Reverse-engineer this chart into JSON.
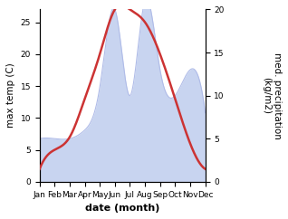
{
  "months": [
    "Jan",
    "Feb",
    "Mar",
    "Apr",
    "May",
    "Jun",
    "Jul",
    "Aug",
    "Sep",
    "Oct",
    "Nov",
    "Dec"
  ],
  "temperature": [
    2,
    5,
    7,
    13,
    20,
    27,
    27,
    25,
    20,
    13,
    6,
    2
  ],
  "precipitation": [
    5,
    5,
    5,
    6,
    11,
    20,
    10,
    21,
    13,
    10,
    13,
    8
  ],
  "temp_color": "#cc3333",
  "precip_fill_color": "#c8d4f0",
  "precip_edge_color": "#b0bce8",
  "xlabel": "date (month)",
  "ylabel_left": "max temp (C)",
  "ylabel_right": "med. precipitation\n(kg/m2)",
  "ylim_left": [
    0,
    27
  ],
  "ylim_right": [
    0,
    20
  ],
  "yticks_left": [
    0,
    5,
    10,
    15,
    20,
    25
  ],
  "yticks_right": [
    0,
    5,
    10,
    15,
    20
  ],
  "bg_color": "#ffffff",
  "label_fontsize": 7.5,
  "tick_fontsize": 6.5,
  "xlabel_fontsize": 8
}
